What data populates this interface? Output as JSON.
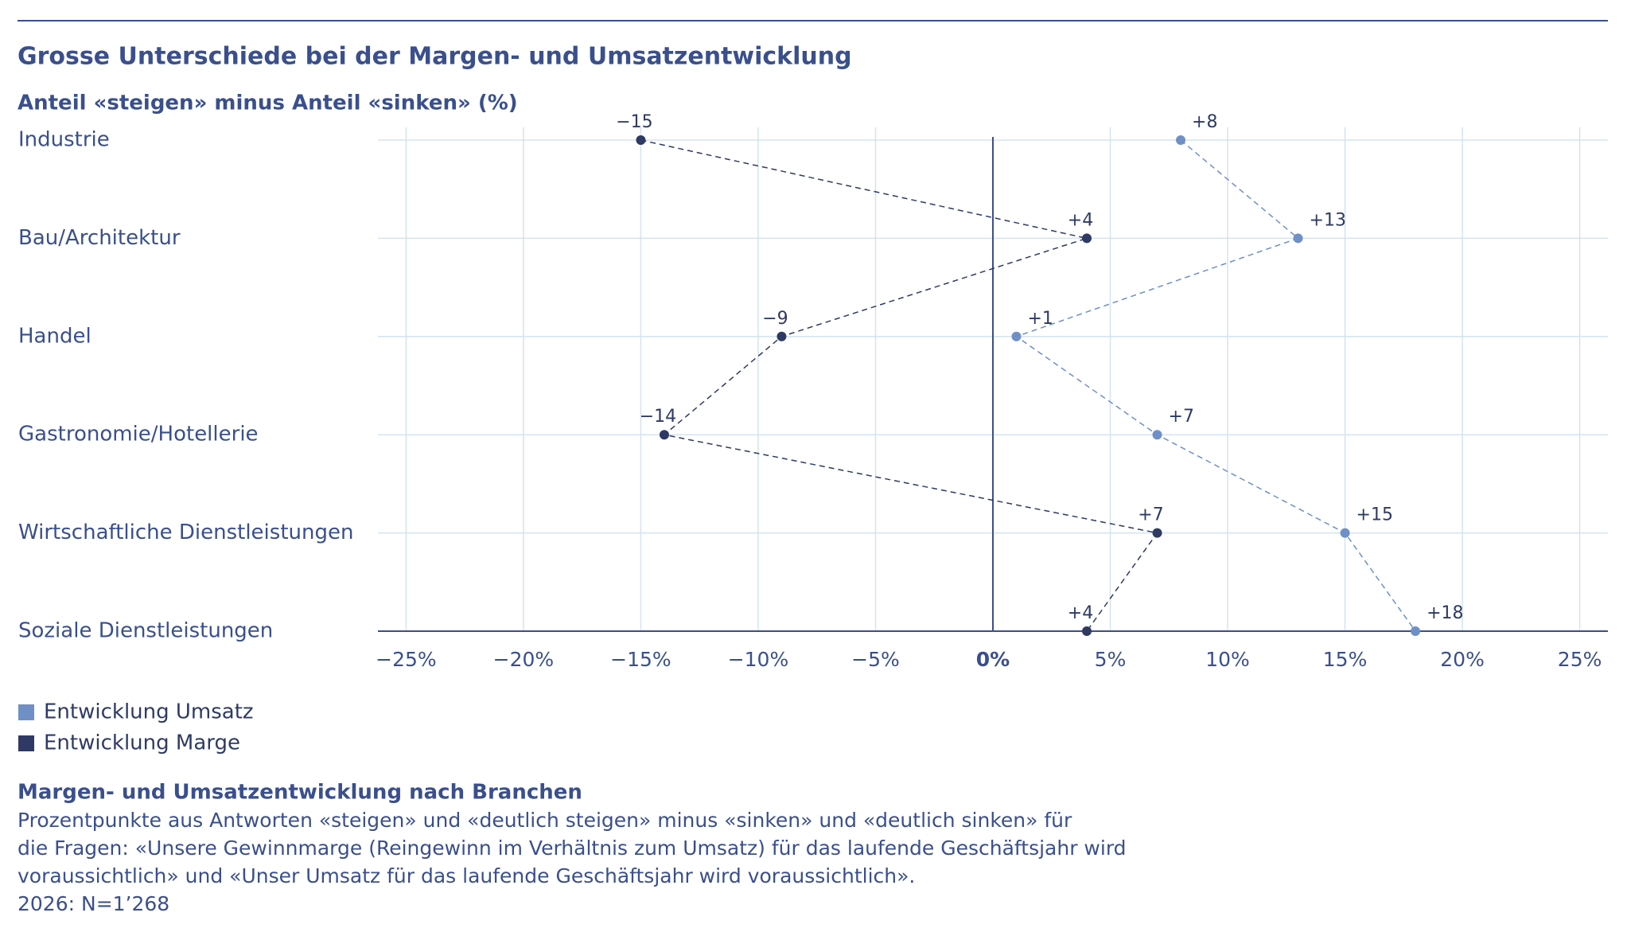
{
  "chart_data": {
    "type": "dot-line",
    "title": "Grosse Unterschiede bei der Margen- und Umsatzentwicklung",
    "subtitle": "Anteil «steigen» minus Anteil «sinken» (%)",
    "categories": [
      "Industrie",
      "Bau/Architektur",
      "Handel",
      "Gastronomie/Hotellerie",
      "Wirtschaftliche Dienstleistungen",
      "Soziale Dienstleistungen"
    ],
    "series": [
      {
        "name": "Entwicklung Umsatz",
        "color": "#6f8fc7",
        "values": [
          8,
          13,
          1,
          7,
          15,
          18
        ],
        "value_labels": [
          "+8",
          "+13",
          "+1",
          "+7",
          "+15",
          "+18"
        ]
      },
      {
        "name": "Entwicklung Marge",
        "color": "#2e3a63",
        "values": [
          -15,
          4,
          -9,
          -14,
          7,
          4
        ],
        "value_labels": [
          "−15",
          "+4",
          "−9",
          "−14",
          "+7",
          "+4"
        ]
      }
    ],
    "xlim": [
      -26.2,
      26.2
    ],
    "xticks": [
      {
        "value": -25,
        "label": "−25%"
      },
      {
        "value": -20,
        "label": "−20%"
      },
      {
        "value": -15,
        "label": "−15%"
      },
      {
        "value": -10,
        "label": "−10%"
      },
      {
        "value": -5,
        "label": "−5%"
      },
      {
        "value": 0,
        "label": "0%"
      },
      {
        "value": 5,
        "label": "5%"
      },
      {
        "value": 10,
        "label": "10%"
      },
      {
        "value": 15,
        "label": "15%"
      },
      {
        "value": 20,
        "label": "20%"
      },
      {
        "value": 25,
        "label": "25%"
      }
    ],
    "grid": true
  },
  "notes": {
    "title": "Margen- und Umsatzentwicklung nach Branchen",
    "lines": [
      "Prozentpunkte aus Antworten «steigen» und «deutlich steigen» minus «sinken» und «deutlich sinken» für",
      "die Fragen: «Unsere Gewinnmarge (Reingewinn im Verhältnis zum Umsatz) für das laufende Geschäftsjahr wird",
      "voraussichtlich» und «Unser Umsatz für das laufende Geschäftsjahr wird voraussichtlich».",
      "2026: N=1’268"
    ]
  }
}
